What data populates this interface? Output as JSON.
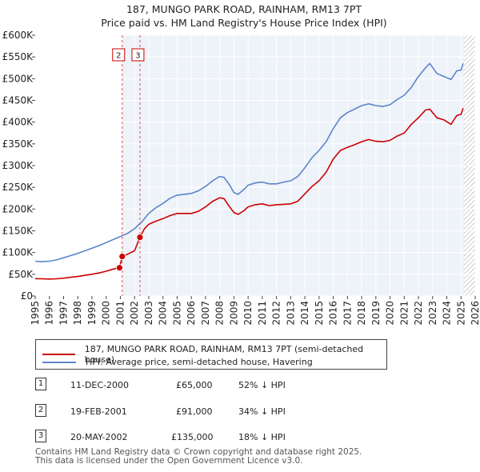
{
  "chart_data": {
    "type": "line",
    "title": "187, MUNGO PARK ROAD, RAINHAM, RM13 7PT",
    "subtitle": "Price paid vs. HM Land Registry's House Price Index (HPI)",
    "xlim": [
      1995,
      2026
    ],
    "ylim": [
      0,
      600000
    ],
    "x_ticks": [
      "1995",
      "1996",
      "1997",
      "1998",
      "1999",
      "2000",
      "2001",
      "2002",
      "2003",
      "2004",
      "2005",
      "2006",
      "2007",
      "2008",
      "2009",
      "2010",
      "2011",
      "2012",
      "2013",
      "2014",
      "2015",
      "2016",
      "2017",
      "2018",
      "2019",
      "2020",
      "2021",
      "2022",
      "2023",
      "2024",
      "2025",
      "2026"
    ],
    "y_ticks": [
      {
        "value": 0,
        "label": "£0"
      },
      {
        "value": 50000,
        "label": "£50K"
      },
      {
        "value": 100000,
        "label": "£100K"
      },
      {
        "value": 150000,
        "label": "£150K"
      },
      {
        "value": 200000,
        "label": "£200K"
      },
      {
        "value": 250000,
        "label": "£250K"
      },
      {
        "value": 300000,
        "label": "£300K"
      },
      {
        "value": 350000,
        "label": "£350K"
      },
      {
        "value": 400000,
        "label": "£400K"
      },
      {
        "value": 450000,
        "label": "£450K"
      },
      {
        "value": 500000,
        "label": "£500K"
      },
      {
        "value": 550000,
        "label": "£550K"
      },
      {
        "value": 600000,
        "label": "£600K"
      }
    ],
    "grid": true,
    "series": [
      {
        "name": "187, MUNGO PARK ROAD, RAINHAM, RM13 7PT (semi-detached house)",
        "color": "#cc0000",
        "points": [
          [
            1995.0,
            40000
          ],
          [
            1995.5,
            39500
          ],
          [
            1996.0,
            39000
          ],
          [
            1996.5,
            39500
          ],
          [
            1997.0,
            41000
          ],
          [
            1997.5,
            43000
          ],
          [
            1998.0,
            45000
          ],
          [
            1998.5,
            47500
          ],
          [
            1999.0,
            50000
          ],
          [
            1999.5,
            53000
          ],
          [
            2000.0,
            57000
          ],
          [
            2000.5,
            62000
          ],
          [
            2000.94,
            65000
          ],
          [
            2001.13,
            91000
          ],
          [
            2001.5,
            96000
          ],
          [
            2002.0,
            104000
          ],
          [
            2002.38,
            135000
          ],
          [
            2002.7,
            155000
          ],
          [
            2003.0,
            165000
          ],
          [
            2003.5,
            172000
          ],
          [
            2004.0,
            178000
          ],
          [
            2004.5,
            185000
          ],
          [
            2005.0,
            190000
          ],
          [
            2005.5,
            190000
          ],
          [
            2006.0,
            190000
          ],
          [
            2006.5,
            195000
          ],
          [
            2007.0,
            205000
          ],
          [
            2007.5,
            218000
          ],
          [
            2008.0,
            226000
          ],
          [
            2008.3,
            224000
          ],
          [
            2008.7,
            205000
          ],
          [
            2009.0,
            192000
          ],
          [
            2009.3,
            188000
          ],
          [
            2009.7,
            196000
          ],
          [
            2010.0,
            205000
          ],
          [
            2010.5,
            210000
          ],
          [
            2011.0,
            212000
          ],
          [
            2011.5,
            208000
          ],
          [
            2012.0,
            210000
          ],
          [
            2012.5,
            211000
          ],
          [
            2013.0,
            212000
          ],
          [
            2013.5,
            218000
          ],
          [
            2014.0,
            235000
          ],
          [
            2014.5,
            252000
          ],
          [
            2015.0,
            265000
          ],
          [
            2015.5,
            285000
          ],
          [
            2016.0,
            315000
          ],
          [
            2016.5,
            335000
          ],
          [
            2017.0,
            342000
          ],
          [
            2017.5,
            348000
          ],
          [
            2018.0,
            355000
          ],
          [
            2018.5,
            360000
          ],
          [
            2019.0,
            356000
          ],
          [
            2019.5,
            355000
          ],
          [
            2020.0,
            358000
          ],
          [
            2020.5,
            368000
          ],
          [
            2021.0,
            375000
          ],
          [
            2021.5,
            395000
          ],
          [
            2022.0,
            410000
          ],
          [
            2022.5,
            428000
          ],
          [
            2022.8,
            430000
          ],
          [
            2023.3,
            410000
          ],
          [
            2023.8,
            405000
          ],
          [
            2024.3,
            395000
          ],
          [
            2024.7,
            415000
          ],
          [
            2025.0,
            418000
          ],
          [
            2025.15,
            432000
          ]
        ]
      },
      {
        "name": "HPI: Average price, semi-detached house, Havering",
        "color": "#5b86c8",
        "points": [
          [
            1995.0,
            80000
          ],
          [
            1995.5,
            79000
          ],
          [
            1996.0,
            80000
          ],
          [
            1996.5,
            83000
          ],
          [
            1997.0,
            88000
          ],
          [
            1997.5,
            93000
          ],
          [
            1998.0,
            98000
          ],
          [
            1998.5,
            104000
          ],
          [
            1999.0,
            110000
          ],
          [
            1999.5,
            116000
          ],
          [
            2000.0,
            123000
          ],
          [
            2000.5,
            130000
          ],
          [
            2001.0,
            137000
          ],
          [
            2001.5,
            144000
          ],
          [
            2002.0,
            155000
          ],
          [
            2002.5,
            170000
          ],
          [
            2003.0,
            190000
          ],
          [
            2003.5,
            203000
          ],
          [
            2004.0,
            213000
          ],
          [
            2004.5,
            225000
          ],
          [
            2005.0,
            232000
          ],
          [
            2005.5,
            234000
          ],
          [
            2006.0,
            236000
          ],
          [
            2006.5,
            242000
          ],
          [
            2007.0,
            252000
          ],
          [
            2007.5,
            265000
          ],
          [
            2008.0,
            275000
          ],
          [
            2008.3,
            273000
          ],
          [
            2008.7,
            255000
          ],
          [
            2009.0,
            238000
          ],
          [
            2009.3,
            234000
          ],
          [
            2009.7,
            245000
          ],
          [
            2010.0,
            255000
          ],
          [
            2010.5,
            260000
          ],
          [
            2011.0,
            262000
          ],
          [
            2011.5,
            258000
          ],
          [
            2012.0,
            258000
          ],
          [
            2012.5,
            262000
          ],
          [
            2013.0,
            265000
          ],
          [
            2013.5,
            275000
          ],
          [
            2014.0,
            295000
          ],
          [
            2014.5,
            318000
          ],
          [
            2015.0,
            335000
          ],
          [
            2015.5,
            355000
          ],
          [
            2016.0,
            385000
          ],
          [
            2016.5,
            410000
          ],
          [
            2017.0,
            422000
          ],
          [
            2017.5,
            430000
          ],
          [
            2018.0,
            438000
          ],
          [
            2018.5,
            442000
          ],
          [
            2019.0,
            438000
          ],
          [
            2019.5,
            436000
          ],
          [
            2020.0,
            440000
          ],
          [
            2020.5,
            452000
          ],
          [
            2021.0,
            462000
          ],
          [
            2021.5,
            480000
          ],
          [
            2022.0,
            505000
          ],
          [
            2022.5,
            525000
          ],
          [
            2022.8,
            535000
          ],
          [
            2023.3,
            512000
          ],
          [
            2023.8,
            505000
          ],
          [
            2024.3,
            498000
          ],
          [
            2024.7,
            518000
          ],
          [
            2025.0,
            520000
          ],
          [
            2025.15,
            535000
          ]
        ]
      }
    ],
    "transactions": [
      {
        "num": "1",
        "year": 2000.94,
        "price": 65000
      },
      {
        "num": "2",
        "year": 2001.13,
        "price": 91000
      },
      {
        "num": "3",
        "year": 2002.38,
        "price": 135000
      }
    ],
    "chart_labels": [
      {
        "num": "2",
        "year": 2001.13
      },
      {
        "num": "3",
        "year": 2002.38
      }
    ],
    "shaded_before": 2001.13,
    "shaded_after": 2025.2
  },
  "legend": {
    "property_label": "187, MUNGO PARK ROAD, RAINHAM, RM13 7PT (semi-detached house)",
    "hpi_label": "HPI: Average price, semi-detached house, Havering",
    "property_color": "#cc0000",
    "hpi_color": "#5b86c8"
  },
  "transactions_table": [
    {
      "num": "1",
      "date": "11-DEC-2000",
      "price": "£65,000",
      "hpi": "52% ↓ HPI"
    },
    {
      "num": "2",
      "date": "19-FEB-2001",
      "price": "£91,000",
      "hpi": "34% ↓ HPI"
    },
    {
      "num": "3",
      "date": "20-MAY-2002",
      "price": "£135,000",
      "hpi": "18% ↓ HPI"
    }
  ],
  "footer": {
    "line1": "Contains HM Land Registry data © Crown copyright and database right 2025.",
    "line2": "This data is licensed under the Open Government Licence v3.0."
  }
}
